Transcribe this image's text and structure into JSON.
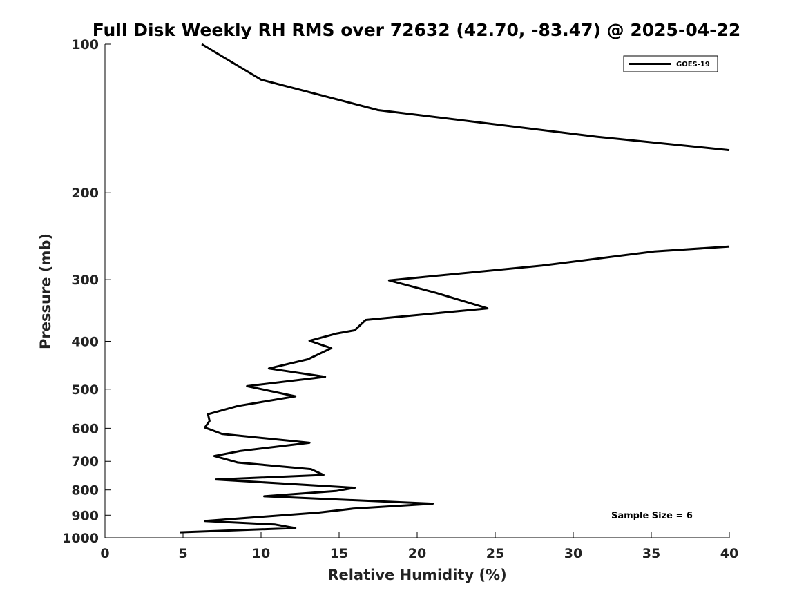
{
  "chart_data": {
    "type": "line",
    "title": "Full Disk Weekly RH RMS over 72632 (42.70, -83.47) @ 2025-04-22",
    "xlabel": "Relative Humidity (%)",
    "ylabel": "Pressure (mb)",
    "xlim": [
      0,
      40
    ],
    "ylim": [
      100,
      1000
    ],
    "y_scale": "log",
    "y_inverted": true,
    "grid": false,
    "legend_position": "top-right",
    "x_ticks": [
      0,
      5,
      10,
      15,
      20,
      25,
      30,
      35,
      40
    ],
    "y_ticks": [
      100,
      200,
      300,
      400,
      500,
      600,
      700,
      800,
      900,
      1000
    ],
    "annotation": "Sample Size = 6",
    "series": [
      {
        "name": "GOES-19",
        "color": "#000000",
        "segments": [
          {
            "x": [
              6.2,
              10.0,
              17.5,
              31.5,
              40.0
            ],
            "y": [
              100,
              118,
              136,
              154,
              164
            ]
          },
          {
            "x": [
              40.0,
              35.2,
              28.0,
              18.2,
              21.2,
              24.5,
              16.7,
              16.0,
              14.8,
              13.1,
              14.5,
              13.0,
              10.5,
              14.1,
              9.1,
              12.2,
              8.5,
              6.6,
              6.7,
              6.4,
              7.5,
              13.1,
              8.7,
              7.0,
              8.5,
              13.2,
              14.0,
              7.1,
              16.0,
              14.8,
              10.2,
              21.0,
              15.9,
              13.7,
              6.4,
              10.9,
              12.2,
              4.8
            ],
            "y": [
              257,
              263,
              281,
              301,
              319,
              343,
              362,
              380,
              386,
              399,
              413,
              435,
              454,
              472,
              493,
              517,
              541,
              562,
              580,
              598,
              616,
              642,
              667,
              683,
              704,
              726,
              746,
              762,
              792,
              804,
              824,
              853,
              873,
              889,
              925,
              940,
              956,
              975
            ]
          }
        ]
      }
    ]
  }
}
